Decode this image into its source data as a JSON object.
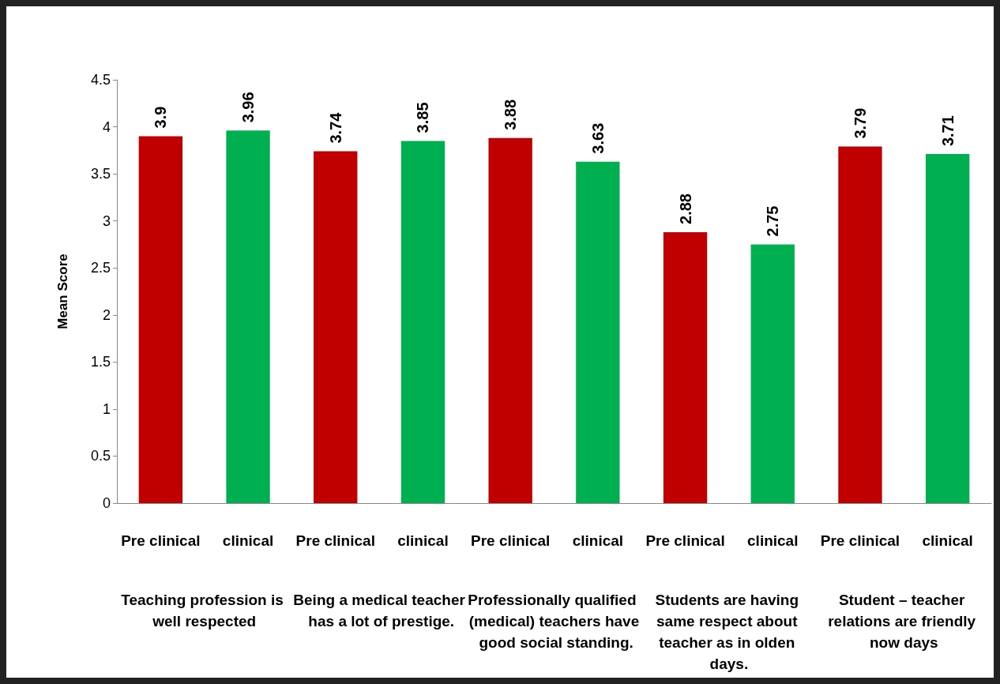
{
  "chart_data": {
    "type": "bar",
    "ylabel": "Mean Score",
    "categories": [
      "Pre clinical",
      "clinical",
      "Pre clinical",
      "clinical",
      "Pre clinical",
      "clinical",
      "Pre clinical",
      "clinical",
      "Pre clinical",
      "clinical"
    ],
    "values": [
      3.9,
      3.96,
      3.74,
      3.85,
      3.88,
      3.63,
      2.88,
      2.75,
      3.79,
      3.71
    ],
    "colors": [
      "#c00000",
      "#00b050",
      "#c00000",
      "#00b050",
      "#c00000",
      "#00b050",
      "#c00000",
      "#00b050",
      "#c00000",
      "#00b050"
    ],
    "ylim": [
      0,
      4.5
    ],
    "yticks": [
      0,
      0.5,
      1,
      1.5,
      2,
      2.5,
      3,
      3.5,
      4,
      4.5
    ],
    "grid": false,
    "data_labels": true,
    "annotations": [
      "Teaching profession is well respected",
      "Being a medical teacher has a lot of prestige.",
      "Professionally qualified (medical) teachers have good social standing.",
      "Students are having same respect about teacher as in olden days.",
      "Student – teacher relations are friendly now days"
    ]
  }
}
